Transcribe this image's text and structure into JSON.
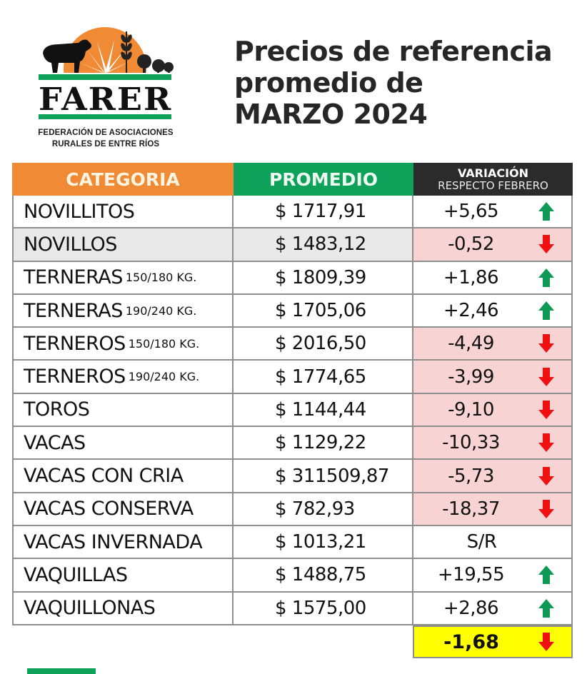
{
  "logo": {
    "name": "FARER",
    "subtitle_line1": "FEDERACIÓN DE ASOCIACIONES",
    "subtitle_line2": "RURALES DE ENTRE RÍOS"
  },
  "title": {
    "line1": "Precios de referencia",
    "line2": "promedio de",
    "line3": "MARZO 2024"
  },
  "colors": {
    "header_categoria": "#f08a34",
    "header_promedio": "#0ea15a",
    "header_variacion": "#2b2b2b",
    "negative_cell": "#f8d3d3",
    "up_arrow": "#0e9a55",
    "down_arrow": "#f01010",
    "total_bg": "#ffff00"
  },
  "table": {
    "headers": {
      "categoria": "CATEGORIA",
      "promedio": "PROMEDIO",
      "variacion": "VARIACIÓN",
      "variacion_sub": "RESPECTO FEBRERO"
    },
    "rows": [
      {
        "categoria": "NOVILLITOS",
        "peso": "",
        "promedio": "$ 1717,91",
        "variacion": "+5,65",
        "trend": "up"
      },
      {
        "categoria": "NOVILLOS",
        "peso": "",
        "promedio": "$ 1483,12",
        "variacion": "-0,52",
        "trend": "down"
      },
      {
        "categoria": "TERNERAS",
        "peso": "150/180 KG.",
        "promedio": "$ 1809,39",
        "variacion": "+1,86",
        "trend": "up"
      },
      {
        "categoria": "TERNERAS",
        "peso": "190/240 KG.",
        "promedio": "$ 1705,06",
        "variacion": "+2,46",
        "trend": "up"
      },
      {
        "categoria": "TERNEROS",
        "peso": "150/180 KG.",
        "promedio": "$ 2016,50",
        "variacion": "-4,49",
        "trend": "down"
      },
      {
        "categoria": "TERNEROS",
        "peso": "190/240 KG.",
        "promedio": "$ 1774,65",
        "variacion": "-3,99",
        "trend": "down"
      },
      {
        "categoria": "TOROS",
        "peso": "",
        "promedio": "$ 1144,44",
        "variacion": "-9,10",
        "trend": "down"
      },
      {
        "categoria": "VACAS",
        "peso": "",
        "promedio": "$ 1129,22",
        "variacion": "-10,33",
        "trend": "down"
      },
      {
        "categoria": "VACAS CON CRIA",
        "peso": "",
        "promedio": "$ 311509,87",
        "variacion": "-5,73",
        "trend": "down"
      },
      {
        "categoria": "VACAS CONSERVA",
        "peso": "",
        "promedio": "$ 782,93",
        "variacion": "-18,37",
        "trend": "down"
      },
      {
        "categoria": "VACAS INVERNADA",
        "peso": "",
        "promedio": "$ 1013,21",
        "variacion": "S/R",
        "trend": "none"
      },
      {
        "categoria": "VAQUILLAS",
        "peso": "",
        "promedio": "$ 1488,75",
        "variacion": "+19,55",
        "trend": "up"
      },
      {
        "categoria": "VAQUILLONAS",
        "peso": "",
        "promedio": "$ 1575,00",
        "variacion": "+2,86",
        "trend": "up"
      }
    ],
    "total": {
      "variacion": "-1,68",
      "trend": "down"
    }
  },
  "icons": {
    "up": "arrow-up-icon",
    "down": "arrow-down-icon"
  }
}
